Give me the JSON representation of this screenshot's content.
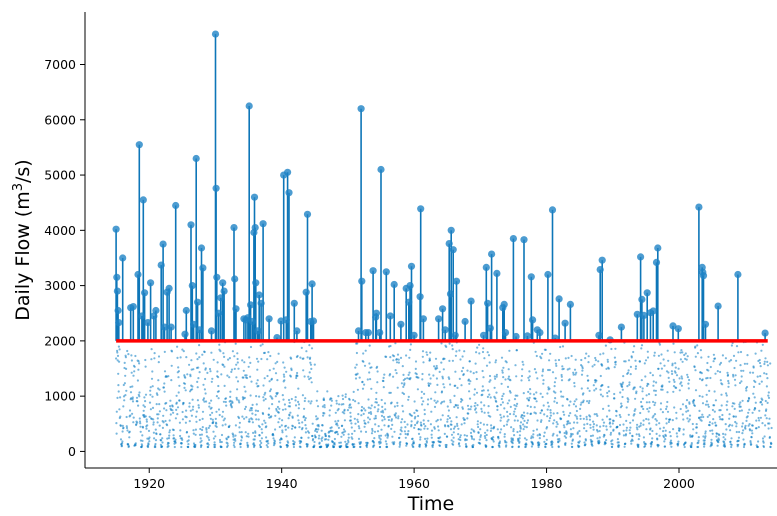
{
  "chart_data": {
    "type": "scatter",
    "title": "",
    "xlabel": "Time",
    "ylabel": {
      "prefix": "Daily Flow (m",
      "sup": "3",
      "suffix": "/s)"
    },
    "xlim": [
      1910.3,
      2014.8
    ],
    "ylim": [
      -300,
      7950
    ],
    "xticks": [
      1920,
      1940,
      1960,
      1980,
      2000
    ],
    "yticks": [
      0,
      1000,
      2000,
      3000,
      4000,
      5000,
      6000,
      7000
    ],
    "grid": false,
    "threshold": {
      "value": 2000,
      "start": 1915.0,
      "end": 2013.4
    },
    "colors": {
      "points": "#0a7bc2",
      "peaks": "#1f83c6",
      "stems": "#0e76b8",
      "threshold": "#ff0000"
    },
    "baseline_series": {
      "start": 1915.0,
      "end": 2014.0,
      "typical_range": [
        200,
        1800
      ],
      "low_floor": 80,
      "sparse_above_2000": false
    },
    "peaks": [
      [
        1915.0,
        4020
      ],
      [
        1915.1,
        3150
      ],
      [
        1915.2,
        2900
      ],
      [
        1915.3,
        2550
      ],
      [
        1915.4,
        2330
      ],
      [
        1916.0,
        3500
      ],
      [
        1917.2,
        2600
      ],
      [
        1917.6,
        2620
      ],
      [
        1918.3,
        3200
      ],
      [
        1918.5,
        5550
      ],
      [
        1918.9,
        2450
      ],
      [
        1919.1,
        4550
      ],
      [
        1919.3,
        2870
      ],
      [
        1919.8,
        2330
      ],
      [
        1920.2,
        3050
      ],
      [
        1920.7,
        2450
      ],
      [
        1921.0,
        2550
      ],
      [
        1921.8,
        3370
      ],
      [
        1922.1,
        3750
      ],
      [
        1922.3,
        2250
      ],
      [
        1922.7,
        2880
      ],
      [
        1923.0,
        2950
      ],
      [
        1923.3,
        2250
      ],
      [
        1924.0,
        4450
      ],
      [
        1925.4,
        2120
      ],
      [
        1925.6,
        2550
      ],
      [
        1926.3,
        4100
      ],
      [
        1926.5,
        3000
      ],
      [
        1926.7,
        2300
      ],
      [
        1927.1,
        5300
      ],
      [
        1927.3,
        2700
      ],
      [
        1927.6,
        2200
      ],
      [
        1927.9,
        3680
      ],
      [
        1928.1,
        3320
      ],
      [
        1929.4,
        2180
      ],
      [
        1930.0,
        7550
      ],
      [
        1930.1,
        4760
      ],
      [
        1930.2,
        3150
      ],
      [
        1930.5,
        2500
      ],
      [
        1930.8,
        2780
      ],
      [
        1931.1,
        3050
      ],
      [
        1931.3,
        2900
      ],
      [
        1932.8,
        4050
      ],
      [
        1932.9,
        3120
      ],
      [
        1933.1,
        2580
      ],
      [
        1934.3,
        2400
      ],
      [
        1934.6,
        2380
      ],
      [
        1934.9,
        2420
      ],
      [
        1935.1,
        6250
      ],
      [
        1935.3,
        2650
      ],
      [
        1935.6,
        2350
      ],
      [
        1935.8,
        3960
      ],
      [
        1935.9,
        4600
      ],
      [
        1936.0,
        4050
      ],
      [
        1936.1,
        3050
      ],
      [
        1936.4,
        2180
      ],
      [
        1936.6,
        2830
      ],
      [
        1936.9,
        2680
      ],
      [
        1937.2,
        4120
      ],
      [
        1938.1,
        2400
      ],
      [
        1939.3,
        2060
      ],
      [
        1939.9,
        2360
      ],
      [
        1940.3,
        5000
      ],
      [
        1940.7,
        2380
      ],
      [
        1940.9,
        5050
      ],
      [
        1941.1,
        4680
      ],
      [
        1941.9,
        2680
      ],
      [
        1942.3,
        2180
      ],
      [
        1943.7,
        2880
      ],
      [
        1943.9,
        4290
      ],
      [
        1944.4,
        2350
      ],
      [
        1944.6,
        3030
      ],
      [
        1944.8,
        2360
      ],
      [
        1951.6,
        2180
      ],
      [
        1952.0,
        6200
      ],
      [
        1952.1,
        3080
      ],
      [
        1952.7,
        2150
      ],
      [
        1953.1,
        2150
      ],
      [
        1953.8,
        3270
      ],
      [
        1954.2,
        2430
      ],
      [
        1954.3,
        2500
      ],
      [
        1954.8,
        2150
      ],
      [
        1955.0,
        5100
      ],
      [
        1955.8,
        3250
      ],
      [
        1956.4,
        2450
      ],
      [
        1957.0,
        3020
      ],
      [
        1958.0,
        2300
      ],
      [
        1958.8,
        2950
      ],
      [
        1959.2,
        2700
      ],
      [
        1959.4,
        3000
      ],
      [
        1959.6,
        3350
      ],
      [
        1960.0,
        2100
      ],
      [
        1960.9,
        2800
      ],
      [
        1961.0,
        4390
      ],
      [
        1961.4,
        2400
      ],
      [
        1963.7,
        2400
      ],
      [
        1964.3,
        2580
      ],
      [
        1964.7,
        2200
      ],
      [
        1965.3,
        3760
      ],
      [
        1965.5,
        2850
      ],
      [
        1965.6,
        4000
      ],
      [
        1965.9,
        3650
      ],
      [
        1966.2,
        2100
      ],
      [
        1966.4,
        3080
      ],
      [
        1967.7,
        2350
      ],
      [
        1968.6,
        2720
      ],
      [
        1970.5,
        2100
      ],
      [
        1970.9,
        3330
      ],
      [
        1971.1,
        2680
      ],
      [
        1971.5,
        2230
      ],
      [
        1971.7,
        3570
      ],
      [
        1972.5,
        3220
      ],
      [
        1973.4,
        2600
      ],
      [
        1973.6,
        2660
      ],
      [
        1973.8,
        2150
      ],
      [
        1975.0,
        3850
      ],
      [
        1975.4,
        2080
      ],
      [
        1976.6,
        3830
      ],
      [
        1977.1,
        2090
      ],
      [
        1977.7,
        3160
      ],
      [
        1977.9,
        2380
      ],
      [
        1978.6,
        2200
      ],
      [
        1979.0,
        2150
      ],
      [
        1980.2,
        3200
      ],
      [
        1980.9,
        4370
      ],
      [
        1981.3,
        2050
      ],
      [
        1981.9,
        2760
      ],
      [
        1982.8,
        2320
      ],
      [
        1983.6,
        2660
      ],
      [
        1987.9,
        2100
      ],
      [
        1988.1,
        3290
      ],
      [
        1988.4,
        3460
      ],
      [
        1989.6,
        2020
      ],
      [
        1991.3,
        2250
      ],
      [
        1993.7,
        2480
      ],
      [
        1994.2,
        3520
      ],
      [
        1994.4,
        2750
      ],
      [
        1994.7,
        2460
      ],
      [
        1995.2,
        2870
      ],
      [
        1995.7,
        2510
      ],
      [
        1996.1,
        2540
      ],
      [
        1996.6,
        3420
      ],
      [
        1996.8,
        3680
      ],
      [
        1999.1,
        2270
      ],
      [
        1999.9,
        2220
      ],
      [
        2003.0,
        4420
      ],
      [
        2003.5,
        3330
      ],
      [
        2003.6,
        3240
      ],
      [
        2003.7,
        3180
      ],
      [
        2004.0,
        2300
      ],
      [
        2005.9,
        2630
      ],
      [
        2008.9,
        3200
      ],
      [
        2013.0,
        2140
      ]
    ]
  }
}
